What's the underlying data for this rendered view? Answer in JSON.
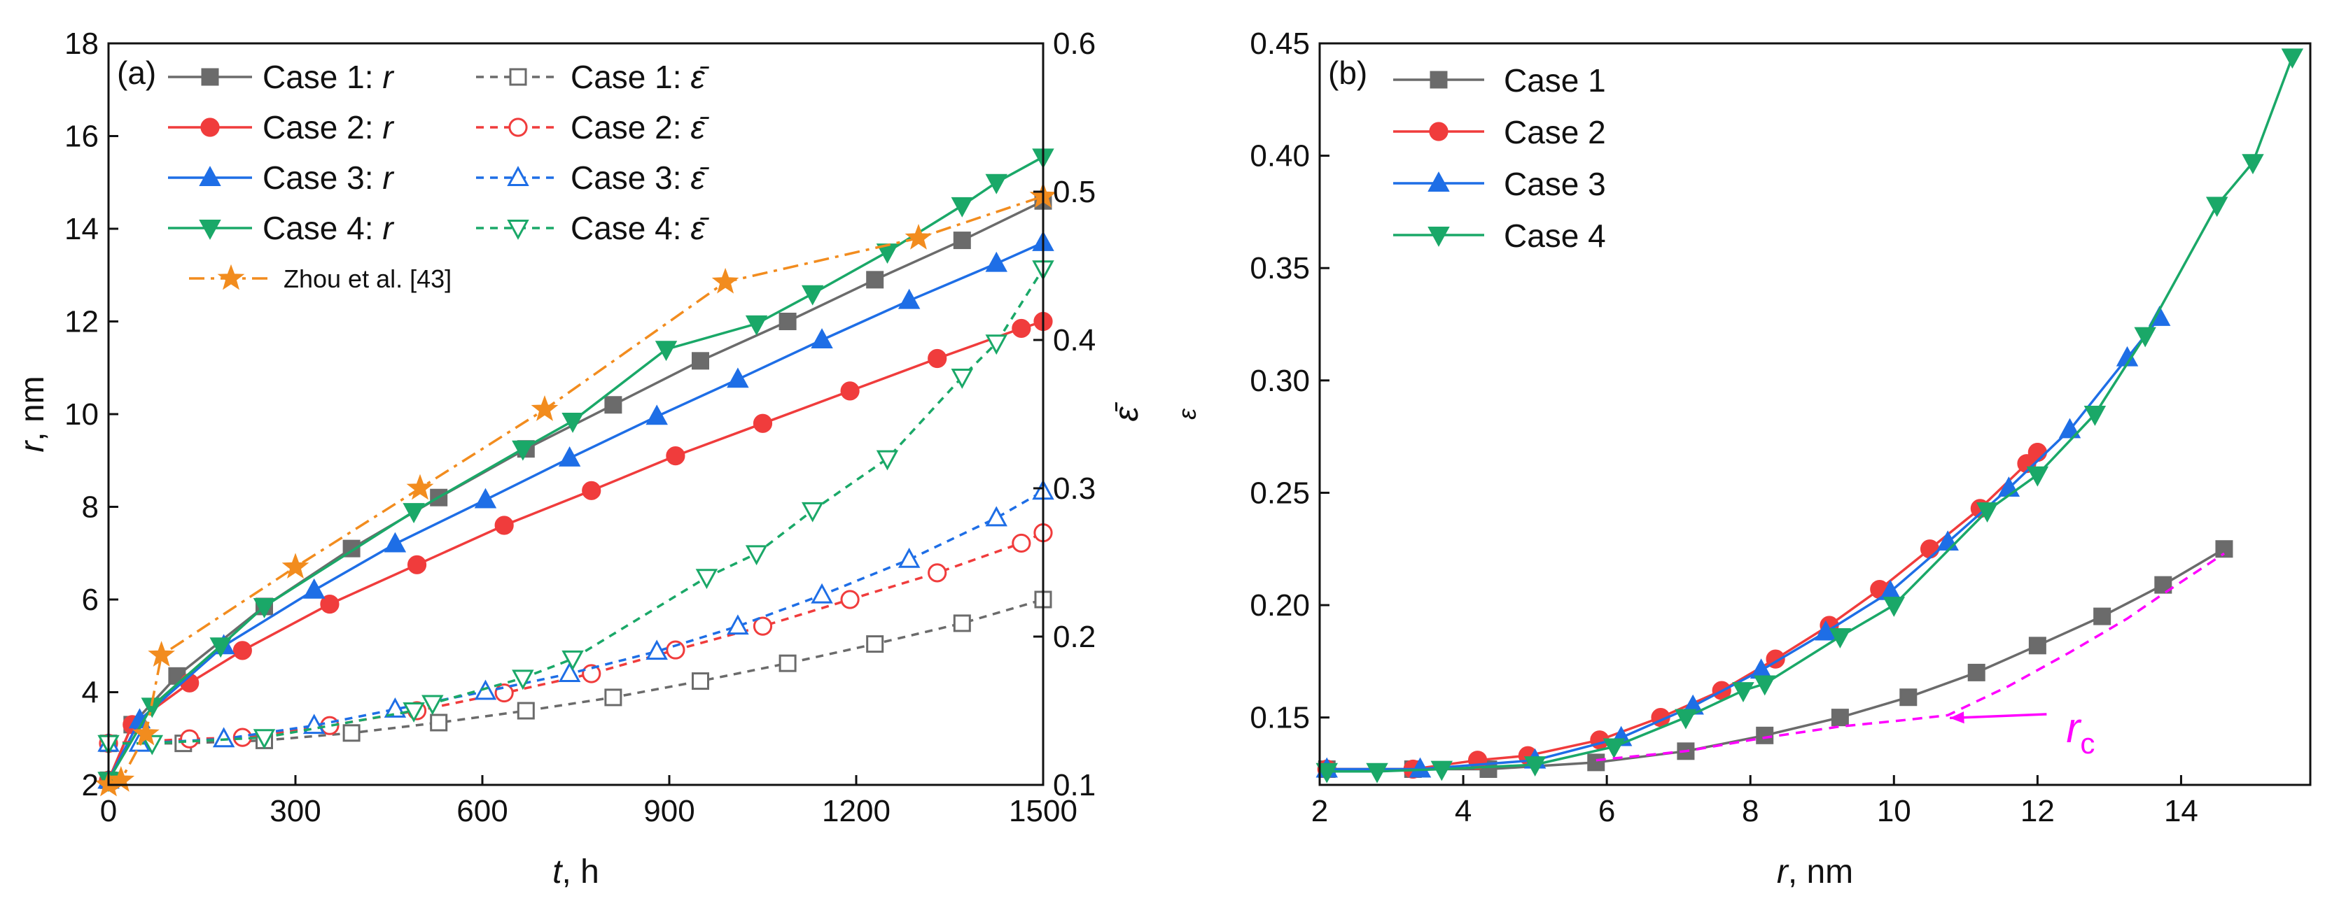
{
  "chart_data": [
    {
      "type": "line",
      "panel_label": "(a)",
      "xlabel_var": "t",
      "xlabel_unit": ", h",
      "ylabel_var": "r",
      "ylabel_unit": ", nm",
      "y2label": "ε̄",
      "xlim": [
        0,
        1500
      ],
      "ylim": [
        2,
        18
      ],
      "y2lim": [
        0.1,
        0.6
      ],
      "xticks": [
        "0",
        "300",
        "600",
        "900",
        "1200",
        "1500"
      ],
      "xtick_values": [
        0,
        300,
        600,
        900,
        1200,
        1500
      ],
      "yticks": [
        "2",
        "4",
        "6",
        "8",
        "10",
        "12",
        "14",
        "16",
        "18"
      ],
      "ytick_values": [
        2,
        4,
        6,
        8,
        10,
        12,
        14,
        16,
        18
      ],
      "y2ticks": [
        "0.1",
        "0.2",
        "0.3",
        "0.4",
        "0.5",
        "0.6"
      ],
      "y2tick_values": [
        0.1,
        0.2,
        0.3,
        0.4,
        0.5,
        0.6
      ],
      "series": [
        {
          "name": "Case 1: r",
          "legend_prefix": "Case 1: ",
          "legend_var": "r",
          "axis": "left",
          "color": "#6b6b6b",
          "marker": "square",
          "filled": true,
          "dashed": false,
          "x": [
            0,
            38,
            110,
            250,
            390,
            530,
            670,
            810,
            950,
            1090,
            1230,
            1370,
            1500
          ],
          "y": [
            2.1,
            3.3,
            4.35,
            5.85,
            7.1,
            8.2,
            9.25,
            10.2,
            11.15,
            12.0,
            12.9,
            13.75,
            14.6
          ]
        },
        {
          "name": "Case 2: r",
          "legend_prefix": "Case 2: ",
          "legend_var": "r",
          "axis": "left",
          "color": "#f03c3c",
          "marker": "circle",
          "filled": true,
          "dashed": false,
          "x": [
            0,
            38,
            130,
            215,
            355,
            495,
            635,
            775,
            910,
            1050,
            1190,
            1330,
            1465,
            1500
          ],
          "y": [
            2.1,
            3.3,
            4.2,
            4.9,
            5.9,
            6.75,
            7.6,
            8.35,
            9.1,
            9.8,
            10.5,
            11.2,
            11.85,
            12.0
          ]
        },
        {
          "name": "Case 3: r",
          "legend_prefix": "Case 3: ",
          "legend_var": "r",
          "axis": "left",
          "color": "#1e6ee6",
          "marker": "triangle-up",
          "filled": true,
          "dashed": false,
          "x": [
            0,
            50,
            185,
            330,
            460,
            605,
            740,
            880,
            1010,
            1145,
            1285,
            1425,
            1500
          ],
          "y": [
            2.1,
            3.4,
            5.0,
            6.2,
            7.2,
            8.15,
            9.05,
            9.95,
            10.75,
            11.6,
            12.45,
            13.25,
            13.7
          ]
        },
        {
          "name": "Case 4: r",
          "legend_prefix": "Case 4: ",
          "legend_var": "r",
          "axis": "left",
          "color": "#1aa868",
          "marker": "triangle-down",
          "filled": true,
          "dashed": false,
          "x": [
            0,
            70,
            180,
            250,
            490,
            665,
            745,
            895,
            1040,
            1130,
            1250,
            1370,
            1425,
            1500
          ],
          "y": [
            2.1,
            3.7,
            5.0,
            5.85,
            7.9,
            9.25,
            9.85,
            11.4,
            11.95,
            12.6,
            13.5,
            14.5,
            15.0,
            15.55
          ]
        },
        {
          "name": "Case 1: ε̄",
          "legend_prefix": "Case 1: ",
          "legend_var": "ε̄",
          "axis": "right",
          "color": "#6b6b6b",
          "marker": "square",
          "filled": false,
          "dashed": true,
          "x": [
            0,
            120,
            250,
            390,
            530,
            670,
            810,
            950,
            1090,
            1230,
            1370,
            1500
          ],
          "y": [
            0.128,
            0.128,
            0.13,
            0.135,
            0.142,
            0.15,
            0.159,
            0.17,
            0.182,
            0.195,
            0.209,
            0.225
          ]
        },
        {
          "name": "Case 2: ε̄",
          "legend_prefix": "Case 2: ",
          "legend_var": "ε̄",
          "axis": "right",
          "color": "#f03c3c",
          "marker": "circle",
          "filled": false,
          "dashed": true,
          "x": [
            0,
            130,
            215,
            355,
            495,
            635,
            775,
            910,
            1050,
            1190,
            1330,
            1465,
            1500
          ],
          "y": [
            0.128,
            0.131,
            0.132,
            0.14,
            0.15,
            0.162,
            0.175,
            0.191,
            0.207,
            0.225,
            0.243,
            0.263,
            0.27
          ]
        },
        {
          "name": "Case 3: ε̄",
          "legend_prefix": "Case 3: ",
          "legend_var": "ε̄",
          "axis": "right",
          "color": "#1e6ee6",
          "marker": "triangle-up",
          "filled": false,
          "dashed": true,
          "x": [
            0,
            50,
            185,
            330,
            460,
            605,
            740,
            880,
            1010,
            1145,
            1285,
            1425,
            1500
          ],
          "y": [
            0.128,
            0.128,
            0.131,
            0.14,
            0.151,
            0.163,
            0.175,
            0.19,
            0.207,
            0.228,
            0.252,
            0.28,
            0.298
          ]
        },
        {
          "name": "Case 4: ε̄",
          "legend_prefix": "Case 4: ",
          "legend_var": "ε̄",
          "axis": "right",
          "color": "#1aa868",
          "marker": "triangle-down",
          "filled": false,
          "dashed": true,
          "x": [
            0,
            70,
            250,
            490,
            520,
            665,
            745,
            960,
            1040,
            1130,
            1250,
            1370,
            1425,
            1500
          ],
          "y": [
            0.128,
            0.128,
            0.132,
            0.15,
            0.155,
            0.172,
            0.185,
            0.24,
            0.256,
            0.285,
            0.32,
            0.375,
            0.398,
            0.448
          ]
        },
        {
          "name": "Zhou et al. [43]",
          "axis": "left",
          "color": "#f28c1e",
          "marker": "star",
          "filled": true,
          "dashed": true,
          "dashdot": true,
          "x": [
            0,
            20,
            60,
            85,
            300,
            500,
            700,
            990,
            1300,
            1500
          ],
          "y": [
            2.0,
            2.1,
            3.1,
            4.8,
            6.7,
            8.4,
            10.1,
            12.85,
            13.8,
            14.7
          ]
        }
      ],
      "legend": "top-left, two columns"
    },
    {
      "type": "line",
      "panel_label": "(b)",
      "xlabel_var": "r",
      "xlabel_unit": ", nm",
      "ylabel": "ε",
      "xlim": [
        2,
        15.8
      ],
      "ylim": [
        0.12,
        0.45
      ],
      "xticks": [
        "2",
        "4",
        "6",
        "8",
        "10",
        "12",
        "14"
      ],
      "xtick_values": [
        2,
        4,
        6,
        8,
        10,
        12,
        14
      ],
      "yticks": [
        "0.15",
        "0.20",
        "0.25",
        "0.30",
        "0.35",
        "0.40",
        "0.45"
      ],
      "ytick_values": [
        0.15,
        0.2,
        0.25,
        0.3,
        0.35,
        0.4,
        0.45
      ],
      "annotation": {
        "text": "r",
        "subscript": "c",
        "color": "#ff00ff",
        "points_to": [
          10.7,
          0.151
        ],
        "text_at": [
          12.4,
          0.139
        ]
      },
      "series": [
        {
          "name": "Case 1",
          "color": "#6b6b6b",
          "marker": "square",
          "x": [
            2.1,
            3.3,
            4.35,
            5.85,
            7.1,
            8.2,
            9.25,
            10.2,
            11.15,
            12.0,
            12.9,
            13.75,
            14.6
          ],
          "y": [
            0.127,
            0.127,
            0.127,
            0.13,
            0.135,
            0.142,
            0.15,
            0.159,
            0.17,
            0.182,
            0.195,
            0.209,
            0.225
          ]
        },
        {
          "name": "Case 2",
          "color": "#f03c3c",
          "marker": "circle",
          "x": [
            2.1,
            3.3,
            4.2,
            4.9,
            5.9,
            6.75,
            7.6,
            8.35,
            9.1,
            9.8,
            10.5,
            11.2,
            11.85,
            12.0
          ],
          "y": [
            0.127,
            0.127,
            0.131,
            0.133,
            0.14,
            0.15,
            0.162,
            0.176,
            0.191,
            0.207,
            0.225,
            0.243,
            0.263,
            0.268
          ]
        },
        {
          "name": "Case 3",
          "color": "#1e6ee6",
          "marker": "triangle-up",
          "x": [
            2.1,
            3.4,
            5.0,
            6.2,
            7.2,
            8.15,
            9.05,
            9.95,
            10.75,
            11.6,
            12.45,
            13.25,
            13.7
          ],
          "y": [
            0.127,
            0.127,
            0.131,
            0.141,
            0.155,
            0.171,
            0.188,
            0.206,
            0.228,
            0.252,
            0.278,
            0.31,
            0.328
          ]
        },
        {
          "name": "Case 4",
          "color": "#1aa868",
          "marker": "triangle-down",
          "x": [
            2.1,
            2.8,
            3.7,
            5.0,
            6.1,
            7.1,
            7.9,
            8.2,
            9.25,
            10.0,
            11.3,
            12.0,
            12.8,
            13.5,
            14.5,
            15.0,
            15.55
          ],
          "y": [
            0.126,
            0.126,
            0.127,
            0.129,
            0.137,
            0.15,
            0.162,
            0.165,
            0.186,
            0.2,
            0.242,
            0.258,
            0.285,
            0.32,
            0.378,
            0.397,
            0.444
          ]
        },
        {
          "name": "r_c locus",
          "color": "#ff00ff",
          "marker": "none",
          "dashed": true,
          "in_legend": false,
          "x": [
            5.85,
            7.1,
            8.2,
            9.25,
            10.2,
            10.75,
            11.6,
            12.45,
            13.25,
            13.75,
            14.6
          ],
          "y": [
            0.131,
            0.135,
            0.141,
            0.146,
            0.149,
            0.151,
            0.164,
            0.179,
            0.194,
            0.205,
            0.223
          ]
        }
      ],
      "legend": "top-left"
    }
  ]
}
